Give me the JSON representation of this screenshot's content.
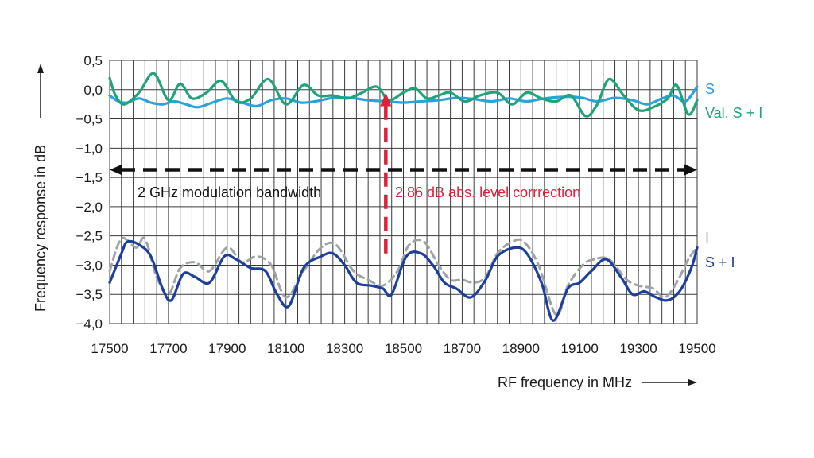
{
  "chart_data": {
    "type": "line",
    "xlabel": "RF frequency in MHz",
    "ylabel": "Frequency response in dB",
    "xlim": [
      17500,
      19500
    ],
    "ylim": [
      -4.0,
      0.5
    ],
    "x_ticks": [
      17500,
      17700,
      17900,
      18100,
      18300,
      18500,
      18700,
      18900,
      19100,
      19300,
      19500
    ],
    "y_ticks": [
      "0,5",
      "0,0",
      "−0,5",
      "−1,0",
      "−1,5",
      "−2,0",
      "−2,5",
      "−3,0",
      "−3,5",
      "−4,0"
    ],
    "y_tick_values": [
      0.5,
      0.0,
      -0.5,
      -1.0,
      -1.5,
      -2.0,
      -2.5,
      -3.0,
      -3.5,
      -4.0
    ],
    "grid": true,
    "series": [
      {
        "name": "S",
        "color": "#29a3dc",
        "dash": "solid",
        "points": [
          [
            17500,
            -0.1
          ],
          [
            17530,
            -0.2
          ],
          [
            17560,
            -0.22
          ],
          [
            17600,
            -0.15
          ],
          [
            17640,
            -0.22
          ],
          [
            17680,
            -0.25
          ],
          [
            17720,
            -0.2
          ],
          [
            17760,
            -0.25
          ],
          [
            17800,
            -0.3
          ],
          [
            17850,
            -0.22
          ],
          [
            17900,
            -0.15
          ],
          [
            17950,
            -0.22
          ],
          [
            18000,
            -0.28
          ],
          [
            18050,
            -0.18
          ],
          [
            18100,
            -0.15
          ],
          [
            18150,
            -0.22
          ],
          [
            18200,
            -0.2
          ],
          [
            18260,
            -0.14
          ],
          [
            18320,
            -0.14
          ],
          [
            18380,
            -0.18
          ],
          [
            18440,
            -0.2
          ],
          [
            18500,
            -0.22
          ],
          [
            18560,
            -0.2
          ],
          [
            18620,
            -0.18
          ],
          [
            18680,
            -0.14
          ],
          [
            18740,
            -0.16
          ],
          [
            18800,
            -0.2
          ],
          [
            18860,
            -0.15
          ],
          [
            18920,
            -0.2
          ],
          [
            18980,
            -0.15
          ],
          [
            19060,
            -0.12
          ],
          [
            19110,
            -0.14
          ],
          [
            19160,
            -0.2
          ],
          [
            19220,
            -0.14
          ],
          [
            19280,
            -0.18
          ],
          [
            19330,
            -0.25
          ],
          [
            19380,
            -0.15
          ],
          [
            19420,
            -0.1
          ],
          [
            19460,
            -0.2
          ],
          [
            19500,
            0.05
          ]
        ]
      },
      {
        "name": "Val. S + I",
        "color": "#1fa37a",
        "dash": "solid",
        "points": [
          [
            17500,
            0.2
          ],
          [
            17520,
            -0.1
          ],
          [
            17550,
            -0.25
          ],
          [
            17600,
            -0.05
          ],
          [
            17650,
            0.28
          ],
          [
            17700,
            -0.18
          ],
          [
            17740,
            0.1
          ],
          [
            17780,
            -0.15
          ],
          [
            17830,
            -0.05
          ],
          [
            17880,
            0.15
          ],
          [
            17930,
            -0.2
          ],
          [
            17980,
            -0.15
          ],
          [
            18040,
            0.18
          ],
          [
            18100,
            -0.25
          ],
          [
            18160,
            0.08
          ],
          [
            18210,
            -0.1
          ],
          [
            18260,
            -0.1
          ],
          [
            18310,
            -0.15
          ],
          [
            18360,
            -0.05
          ],
          [
            18410,
            0.05
          ],
          [
            18450,
            -0.18
          ],
          [
            18500,
            -0.05
          ],
          [
            18540,
            0.02
          ],
          [
            18580,
            -0.15
          ],
          [
            18620,
            -0.1
          ],
          [
            18660,
            -0.05
          ],
          [
            18710,
            -0.2
          ],
          [
            18760,
            -0.1
          ],
          [
            18820,
            -0.05
          ],
          [
            18870,
            -0.25
          ],
          [
            18920,
            -0.05
          ],
          [
            18970,
            -0.15
          ],
          [
            19020,
            -0.2
          ],
          [
            19070,
            -0.1
          ],
          [
            19120,
            -0.45
          ],
          [
            19160,
            -0.25
          ],
          [
            19200,
            0.18
          ],
          [
            19250,
            -0.1
          ],
          [
            19300,
            -0.35
          ],
          [
            19350,
            -0.3
          ],
          [
            19400,
            -0.15
          ],
          [
            19430,
            0.08
          ],
          [
            19470,
            -0.42
          ],
          [
            19500,
            -0.18
          ]
        ]
      },
      {
        "name": "I",
        "color": "#9ea3a6",
        "dash": "dashed",
        "points": [
          [
            17500,
            -3.1
          ],
          [
            17540,
            -2.55
          ],
          [
            17590,
            -2.7
          ],
          [
            17620,
            -2.55
          ],
          [
            17660,
            -3.2
          ],
          [
            17700,
            -3.5
          ],
          [
            17740,
            -3.05
          ],
          [
            17790,
            -2.95
          ],
          [
            17840,
            -3.1
          ],
          [
            17900,
            -2.7
          ],
          [
            17950,
            -2.95
          ],
          [
            18000,
            -2.85
          ],
          [
            18050,
            -3.0
          ],
          [
            18100,
            -3.55
          ],
          [
            18160,
            -3.1
          ],
          [
            18220,
            -2.7
          ],
          [
            18270,
            -2.65
          ],
          [
            18330,
            -3.1
          ],
          [
            18380,
            -3.25
          ],
          [
            18430,
            -3.35
          ],
          [
            18480,
            -3.1
          ],
          [
            18520,
            -2.65
          ],
          [
            18570,
            -2.6
          ],
          [
            18620,
            -3.0
          ],
          [
            18660,
            -3.25
          ],
          [
            18700,
            -3.25
          ],
          [
            18740,
            -3.3
          ],
          [
            18780,
            -3.2
          ],
          [
            18820,
            -2.8
          ],
          [
            18870,
            -2.6
          ],
          [
            18910,
            -2.6
          ],
          [
            18960,
            -3.0
          ],
          [
            19020,
            -3.85
          ],
          [
            19060,
            -3.35
          ],
          [
            19110,
            -3.0
          ],
          [
            19150,
            -2.9
          ],
          [
            19200,
            -2.9
          ],
          [
            19260,
            -3.25
          ],
          [
            19300,
            -3.35
          ],
          [
            19350,
            -3.4
          ],
          [
            19390,
            -3.55
          ],
          [
            19430,
            -3.3
          ],
          [
            19470,
            -2.9
          ],
          [
            19500,
            -2.7
          ]
        ]
      },
      {
        "name": "S + I",
        "color": "#1c3f9e",
        "dash": "solid",
        "points": [
          [
            17500,
            -3.3
          ],
          [
            17540,
            -2.8
          ],
          [
            17560,
            -2.6
          ],
          [
            17600,
            -2.65
          ],
          [
            17640,
            -2.85
          ],
          [
            17680,
            -3.4
          ],
          [
            17710,
            -3.6
          ],
          [
            17750,
            -3.15
          ],
          [
            17790,
            -3.2
          ],
          [
            17840,
            -3.3
          ],
          [
            17890,
            -2.85
          ],
          [
            17930,
            -2.9
          ],
          [
            17980,
            -3.05
          ],
          [
            18030,
            -3.1
          ],
          [
            18070,
            -3.5
          ],
          [
            18110,
            -3.7
          ],
          [
            18160,
            -3.05
          ],
          [
            18220,
            -2.85
          ],
          [
            18260,
            -2.8
          ],
          [
            18300,
            -3.0
          ],
          [
            18340,
            -3.3
          ],
          [
            18390,
            -3.35
          ],
          [
            18430,
            -3.4
          ],
          [
            18460,
            -3.5
          ],
          [
            18510,
            -2.85
          ],
          [
            18560,
            -2.8
          ],
          [
            18600,
            -3.0
          ],
          [
            18640,
            -3.3
          ],
          [
            18680,
            -3.4
          ],
          [
            18730,
            -3.55
          ],
          [
            18780,
            -3.25
          ],
          [
            18820,
            -2.85
          ],
          [
            18880,
            -2.7
          ],
          [
            18920,
            -2.8
          ],
          [
            18970,
            -3.3
          ],
          [
            19010,
            -3.95
          ],
          [
            19060,
            -3.4
          ],
          [
            19100,
            -3.3
          ],
          [
            19140,
            -3.1
          ],
          [
            19190,
            -2.9
          ],
          [
            19240,
            -3.2
          ],
          [
            19280,
            -3.5
          ],
          [
            19320,
            -3.45
          ],
          [
            19360,
            -3.55
          ],
          [
            19400,
            -3.6
          ],
          [
            19440,
            -3.45
          ],
          [
            19480,
            -3.05
          ],
          [
            19500,
            -2.7
          ]
        ]
      }
    ],
    "annotations": [
      {
        "label": "2 GHz modulation bandwidth",
        "color": "#111111"
      },
      {
        "label": "2.86 dB abs. level corrrection",
        "color": "#e11f38"
      }
    ],
    "bandwidth_arrow": {
      "y": -1.37,
      "x_from": 17500,
      "x_to": 19500
    },
    "correction_arrow": {
      "x": 18440,
      "y_from": -2.8,
      "y_to": -0.05
    }
  }
}
